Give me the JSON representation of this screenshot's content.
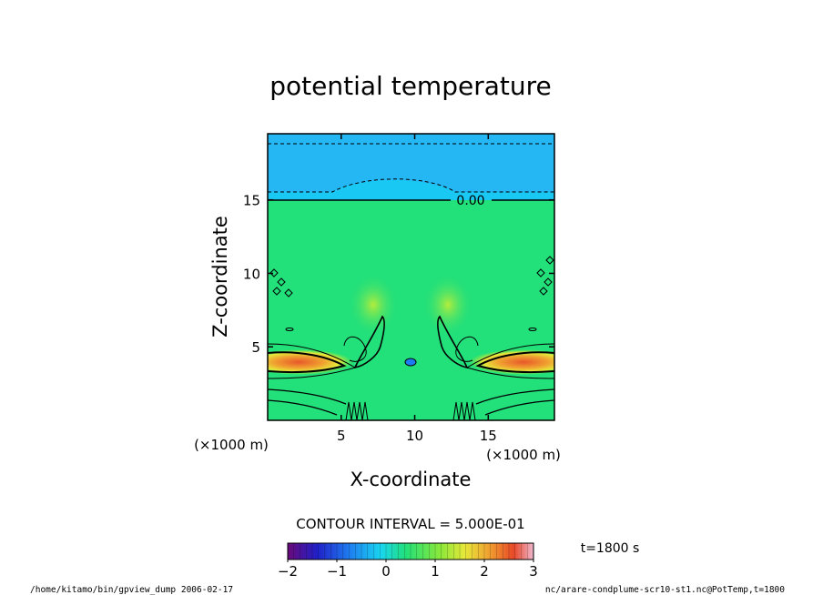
{
  "chart_data": {
    "type": "heatmap",
    "title": "potential temperature",
    "xlabel": "X-coordinate",
    "ylabel": "Z-coordinate",
    "x_unit": "(×1000 m)",
    "z_unit": "(×1000 m)",
    "xlim": [
      0,
      19.5
    ],
    "ylim": [
      0,
      19.5
    ],
    "x_ticks": [
      5,
      10,
      15
    ],
    "y_ticks": [
      5,
      10,
      15
    ],
    "contour_label": "0.00",
    "contour_interval_text": "CONTOUR INTERVAL = 5.000E-01",
    "colorbar": {
      "range": [
        -2,
        3
      ],
      "ticks": [
        -2,
        -1,
        0,
        1,
        2,
        3
      ]
    },
    "time_label": "t=1800 s",
    "grid": false,
    "field_description": "colored contour field with values near 0 in most of the domain, negative layer (about -0.5) above z≈15.5, and positive maxima (about +2.5) at z≈4 near both lateral boundaries"
  },
  "footer": {
    "left": "/home/kitamo/bin/gpview_dump  2006-02-17",
    "right": "nc/arare-condplume-scr10-st1.nc@PotTemp,t=1800"
  },
  "colors": {
    "background_field": "#22e07a",
    "upper_layer": "#19c9f4",
    "top_layer": "#25b6f4",
    "warm_core": "#e8572a"
  }
}
